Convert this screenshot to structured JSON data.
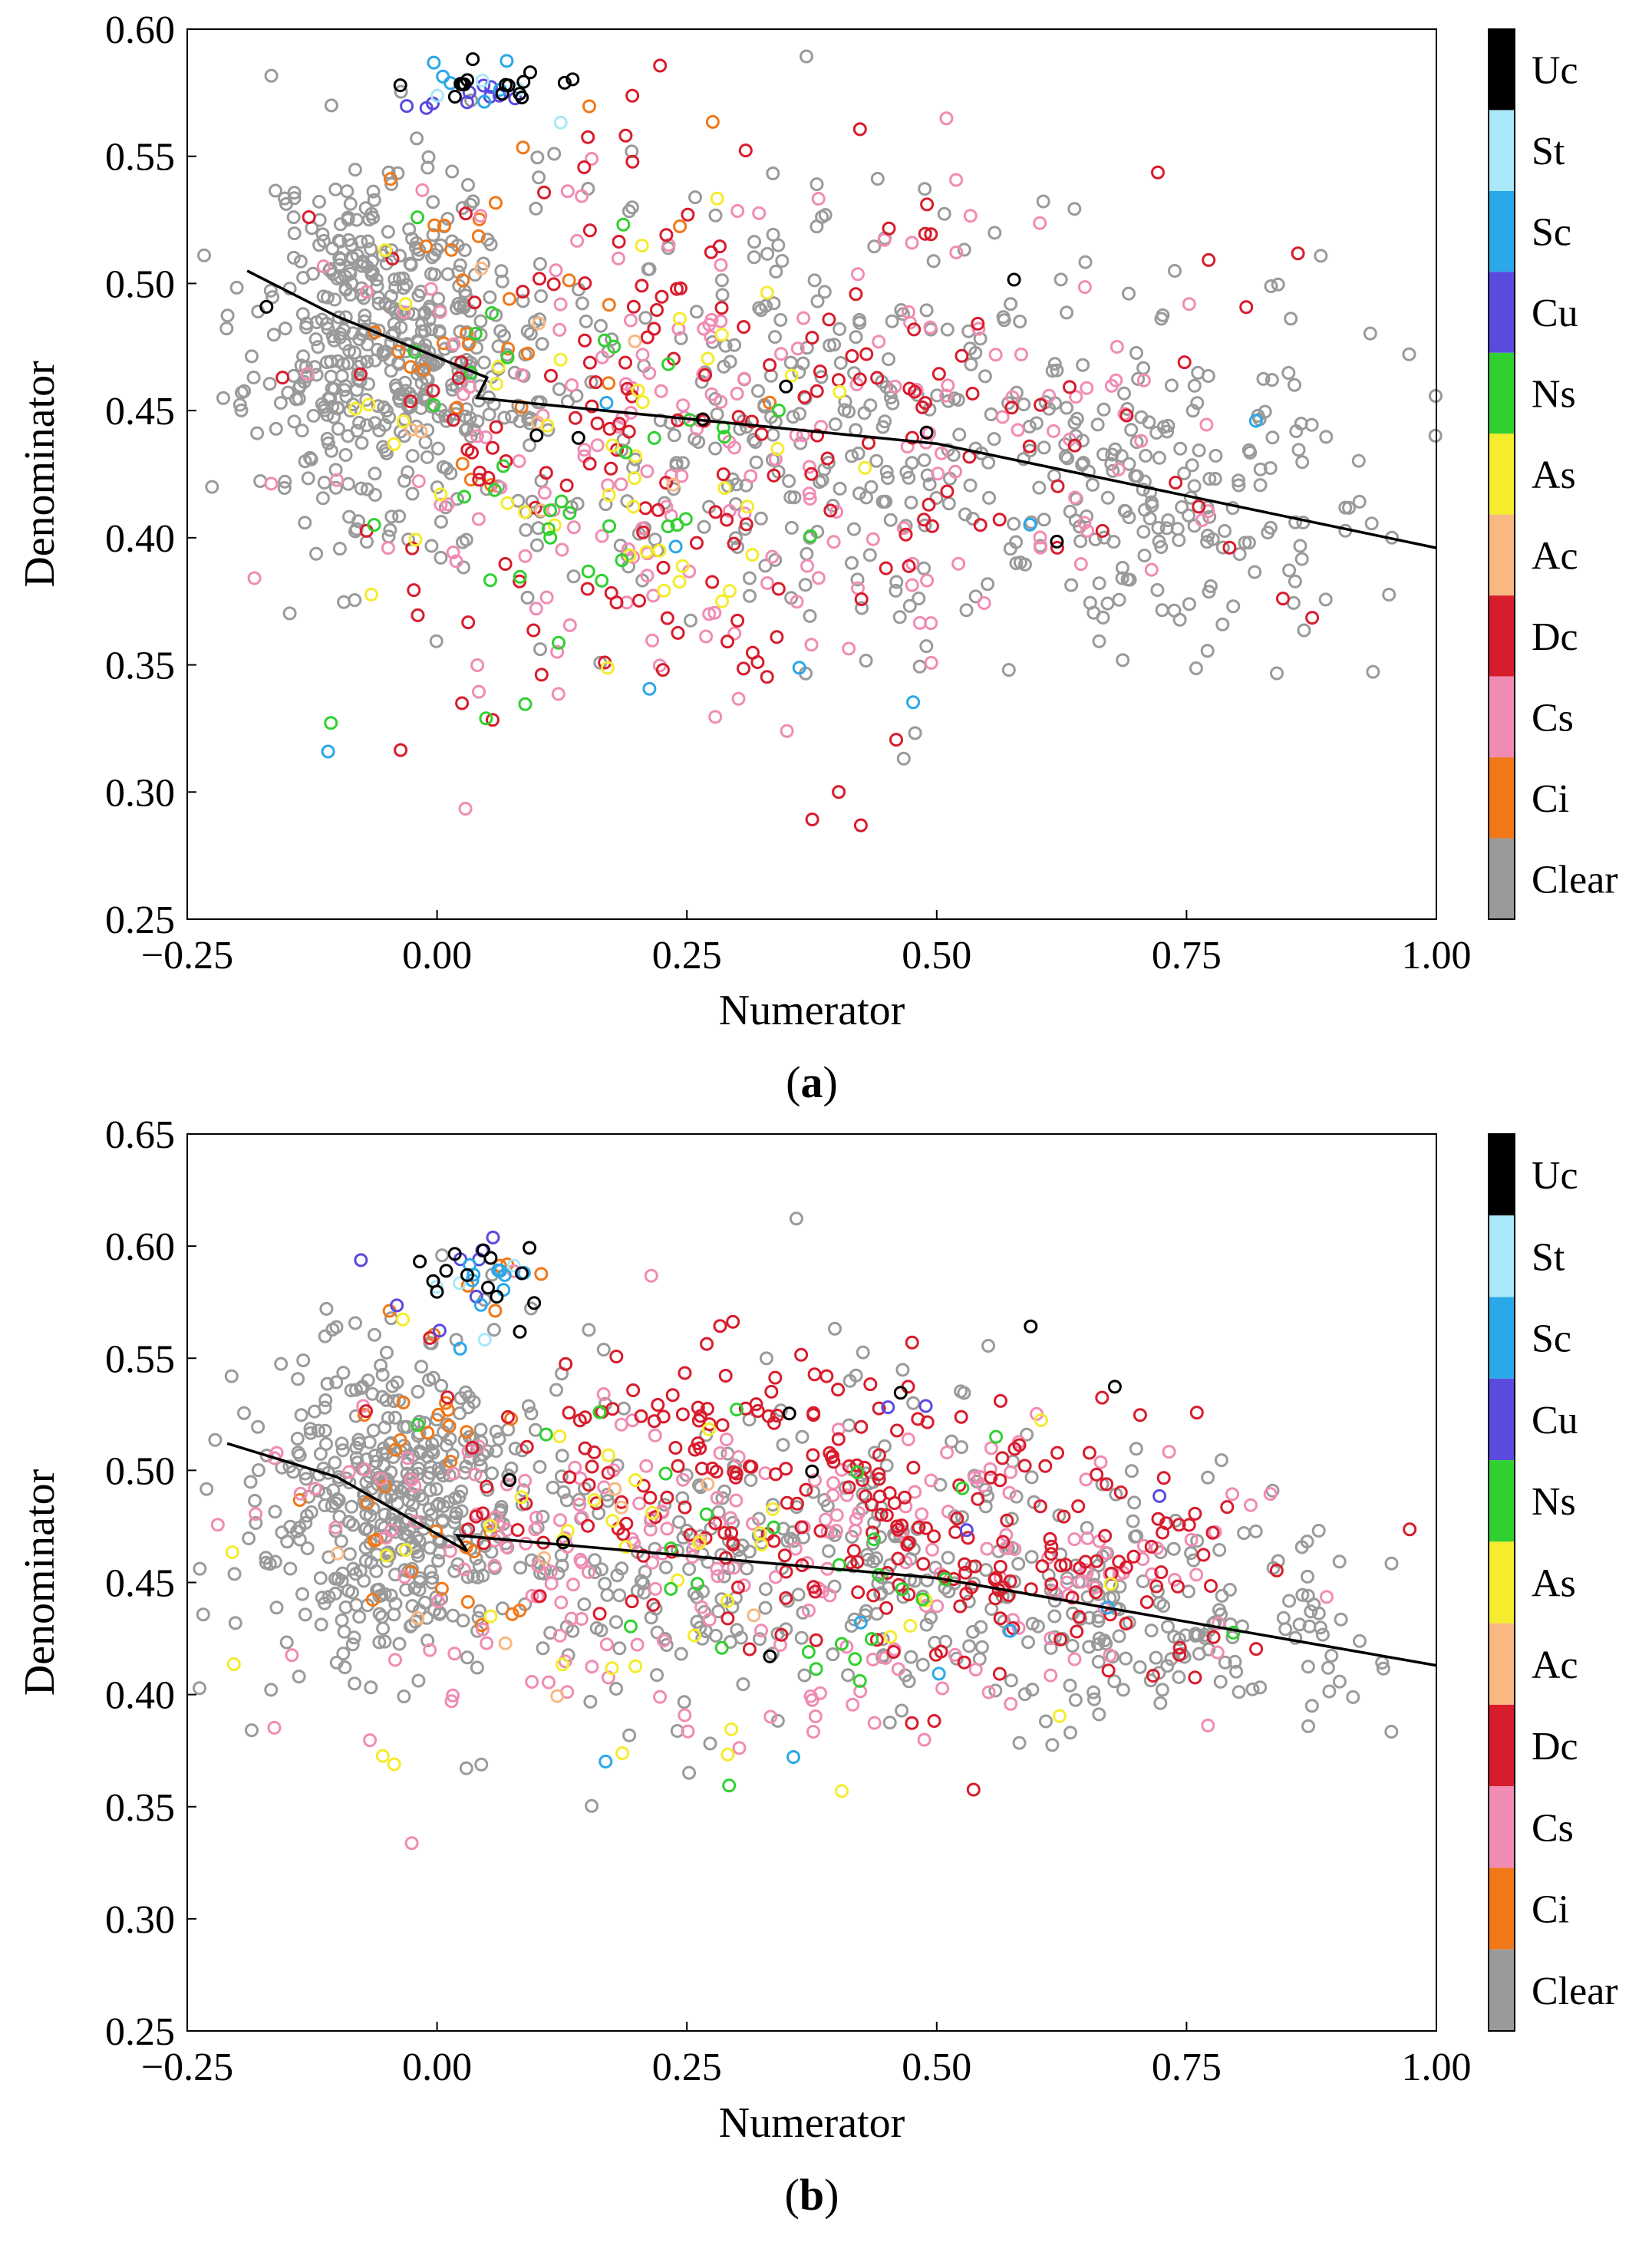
{
  "chart_data": [
    {
      "type": "scatter",
      "panel_label": "a",
      "xlabel": "Numerator",
      "ylabel": "Denominator",
      "xlim": [
        -0.25,
        1.0
      ],
      "ylim": [
        0.25,
        0.6
      ],
      "xticks": [
        -0.25,
        0.0,
        0.25,
        0.5,
        0.75,
        1.0
      ],
      "xtick_labels": [
        "−0.25",
        "0.00",
        "0.25",
        "0.50",
        "0.75",
        "1.00"
      ],
      "yticks": [
        0.25,
        0.3,
        0.35,
        0.4,
        0.45,
        0.5,
        0.55,
        0.6
      ],
      "ytick_labels": [
        "0.25",
        "0.30",
        "0.35",
        "0.40",
        "0.45",
        "0.50",
        "0.55",
        "0.60"
      ],
      "grid": false,
      "legend_placement": "right colorbar",
      "fit_line": [
        [
          -0.19,
          0.505
        ],
        [
          -0.1,
          0.487
        ],
        [
          0.05,
          0.463
        ],
        [
          0.04,
          0.455
        ],
        [
          0.5,
          0.437
        ],
        [
          1.0,
          0.396
        ]
      ],
      "series": [
        {
          "name": "Clear",
          "color": "#9a9a9a",
          "seed": 11,
          "clusters": [
            {
              "n": 420,
              "cx": -0.05,
              "cy": 0.48,
              "sx": 0.065,
              "sy": 0.035
            },
            {
              "n": 380,
              "cx": 0.32,
              "cy": 0.45,
              "sx": 0.22,
              "sy": 0.045
            },
            {
              "n": 160,
              "cx": 0.75,
              "cy": 0.415,
              "sx": 0.12,
              "sy": 0.028
            }
          ]
        },
        {
          "name": "Ci",
          "color": "#f07818",
          "seed": 21,
          "clusters": [
            {
              "n": 24,
              "cx": 0.02,
              "cy": 0.48,
              "sx": 0.05,
              "sy": 0.035
            },
            {
              "n": 8,
              "cx": 0.25,
              "cy": 0.5,
              "sx": 0.1,
              "sy": 0.04
            }
          ]
        },
        {
          "name": "Cs",
          "color": "#f08cb4",
          "seed": 31,
          "clusters": [
            {
              "n": 150,
              "cx": 0.22,
              "cy": 0.43,
              "sx": 0.18,
              "sy": 0.055
            },
            {
              "n": 45,
              "cx": 0.55,
              "cy": 0.44,
              "sx": 0.15,
              "sy": 0.04
            }
          ]
        },
        {
          "name": "Dc",
          "color": "#d81c2c",
          "seed": 41,
          "clusters": [
            {
              "n": 130,
              "cx": 0.22,
              "cy": 0.44,
              "sx": 0.16,
              "sy": 0.06
            },
            {
              "n": 50,
              "cx": 0.52,
              "cy": 0.44,
              "sx": 0.18,
              "sy": 0.045
            }
          ]
        },
        {
          "name": "Ac",
          "color": "#f8b882",
          "seed": 51,
          "clusters": [
            {
              "n": 8,
              "cx": 0.1,
              "cy": 0.45,
              "sx": 0.1,
              "sy": 0.04
            }
          ]
        },
        {
          "name": "As",
          "color": "#f4ec2c",
          "seed": 61,
          "clusters": [
            {
              "n": 45,
              "cx": 0.15,
              "cy": 0.44,
              "sx": 0.15,
              "sy": 0.05
            }
          ]
        },
        {
          "name": "Ns",
          "color": "#30d030",
          "seed": 71,
          "clusters": [
            {
              "n": 40,
              "cx": 0.15,
              "cy": 0.42,
              "sx": 0.12,
              "sy": 0.045
            }
          ]
        },
        {
          "name": "Cu",
          "color": "#5a4ae0",
          "seed": 81,
          "clusters": [
            {
              "n": 10,
              "cx": 0.03,
              "cy": 0.574,
              "sx": 0.03,
              "sy": 0.004
            }
          ]
        },
        {
          "name": "Sc",
          "color": "#2aa8e8",
          "seed": 91,
          "clusters": [
            {
              "n": 6,
              "cx": 0.06,
              "cy": 0.575,
              "sx": 0.04,
              "sy": 0.006
            },
            {
              "n": 8,
              "cx": 0.38,
              "cy": 0.38,
              "sx": 0.2,
              "sy": 0.04
            }
          ]
        },
        {
          "name": "St",
          "color": "#a8e8f8",
          "seed": 101,
          "clusters": [
            {
              "n": 4,
              "cx": 0.06,
              "cy": 0.575,
              "sx": 0.04,
              "sy": 0.006
            }
          ]
        },
        {
          "name": "Uc",
          "color": "#000000",
          "seed": 111,
          "clusters": [
            {
              "n": 16,
              "cx": 0.06,
              "cy": 0.578,
              "sx": 0.04,
              "sy": 0.005
            },
            {
              "n": 8,
              "cx": 0.3,
              "cy": 0.44,
              "sx": 0.25,
              "sy": 0.06
            }
          ]
        }
      ],
      "legend": {
        "entries": [
          "Uc",
          "St",
          "Sc",
          "Cu",
          "Ns",
          "As",
          "Ac",
          "Dc",
          "Cs",
          "Ci",
          "Clear"
        ],
        "colors": [
          "#000000",
          "#a8e8f8",
          "#2aa8e8",
          "#5a4ae0",
          "#30d030",
          "#f4ec2c",
          "#f8b882",
          "#d81c2c",
          "#f08cb4",
          "#f07818",
          "#9a9a9a"
        ]
      }
    },
    {
      "type": "scatter",
      "panel_label": "b",
      "xlabel": "Numerator",
      "ylabel": "Denominator",
      "xlim": [
        -0.25,
        1.0
      ],
      "ylim": [
        0.25,
        0.65
      ],
      "xticks": [
        -0.25,
        0.0,
        0.25,
        0.5,
        0.75,
        1.0
      ],
      "xtick_labels": [
        "−0.25",
        "0.00",
        "0.25",
        "0.50",
        "0.75",
        "1.00"
      ],
      "yticks": [
        0.25,
        0.3,
        0.35,
        0.4,
        0.45,
        0.5,
        0.55,
        0.6,
        0.65
      ],
      "ytick_labels": [
        "0.25",
        "0.30",
        "0.35",
        "0.40",
        "0.45",
        "0.50",
        "0.55",
        "0.60",
        "0.65"
      ],
      "grid": false,
      "legend_placement": "right colorbar",
      "fit_line": [
        [
          -0.21,
          0.512
        ],
        [
          -0.1,
          0.497
        ],
        [
          0.03,
          0.464
        ],
        [
          0.02,
          0.471
        ],
        [
          0.5,
          0.452
        ],
        [
          1.0,
          0.413
        ]
      ],
      "series": [
        {
          "name": "Clear",
          "color": "#9a9a9a",
          "seed": 211,
          "clusters": [
            {
              "n": 400,
              "cx": -0.04,
              "cy": 0.49,
              "sx": 0.07,
              "sy": 0.035
            },
            {
              "n": 320,
              "cx": 0.32,
              "cy": 0.46,
              "sx": 0.22,
              "sy": 0.04
            },
            {
              "n": 160,
              "cx": 0.72,
              "cy": 0.43,
              "sx": 0.13,
              "sy": 0.026
            }
          ]
        },
        {
          "name": "Ci",
          "color": "#f07818",
          "seed": 221,
          "clusters": [
            {
              "n": 30,
              "cx": 0.0,
              "cy": 0.49,
              "sx": 0.05,
              "sy": 0.035
            },
            {
              "n": 5,
              "cx": 0.05,
              "cy": 0.585,
              "sx": 0.04,
              "sy": 0.01
            }
          ]
        },
        {
          "name": "Cs",
          "color": "#f08cb4",
          "seed": 231,
          "clusters": [
            {
              "n": 170,
              "cx": 0.22,
              "cy": 0.46,
              "sx": 0.2,
              "sy": 0.045
            },
            {
              "n": 60,
              "cx": 0.6,
              "cy": 0.46,
              "sx": 0.15,
              "sy": 0.035
            }
          ]
        },
        {
          "name": "Dc",
          "color": "#d81c2c",
          "seed": 241,
          "clusters": [
            {
              "n": 150,
              "cx": 0.3,
              "cy": 0.5,
              "sx": 0.14,
              "sy": 0.03
            },
            {
              "n": 120,
              "cx": 0.62,
              "cy": 0.46,
              "sx": 0.14,
              "sy": 0.03
            }
          ]
        },
        {
          "name": "Ac",
          "color": "#f8b882",
          "seed": 251,
          "clusters": [
            {
              "n": 10,
              "cx": 0.1,
              "cy": 0.46,
              "sx": 0.12,
              "sy": 0.04
            }
          ]
        },
        {
          "name": "As",
          "color": "#f4ec2c",
          "seed": 261,
          "clusters": [
            {
              "n": 40,
              "cx": 0.2,
              "cy": 0.45,
              "sx": 0.18,
              "sy": 0.045
            }
          ]
        },
        {
          "name": "Ns",
          "color": "#30d030",
          "seed": 271,
          "clusters": [
            {
              "n": 30,
              "cx": 0.3,
              "cy": 0.46,
              "sx": 0.2,
              "sy": 0.04
            }
          ]
        },
        {
          "name": "Cu",
          "color": "#5a4ae0",
          "seed": 281,
          "clusters": [
            {
              "n": 8,
              "cx": 0.05,
              "cy": 0.585,
              "sx": 0.04,
              "sy": 0.012
            },
            {
              "n": 4,
              "cx": 0.4,
              "cy": 0.48,
              "sx": 0.15,
              "sy": 0.06
            }
          ]
        },
        {
          "name": "Sc",
          "color": "#2aa8e8",
          "seed": 291,
          "clusters": [
            {
              "n": 10,
              "cx": 0.05,
              "cy": 0.58,
              "sx": 0.04,
              "sy": 0.012
            },
            {
              "n": 6,
              "cx": 0.4,
              "cy": 0.43,
              "sx": 0.2,
              "sy": 0.04
            }
          ]
        },
        {
          "name": "St",
          "color": "#a8e8f8",
          "seed": 301,
          "clusters": [
            {
              "n": 4,
              "cx": 0.05,
              "cy": 0.58,
              "sx": 0.04,
              "sy": 0.012
            }
          ]
        },
        {
          "name": "Uc",
          "color": "#000000",
          "seed": 311,
          "clusters": [
            {
              "n": 14,
              "cx": 0.04,
              "cy": 0.59,
              "sx": 0.04,
              "sy": 0.01
            },
            {
              "n": 8,
              "cx": 0.35,
              "cy": 0.48,
              "sx": 0.25,
              "sy": 0.05
            }
          ]
        }
      ],
      "legend": {
        "entries": [
          "Uc",
          "St",
          "Sc",
          "Cu",
          "Ns",
          "As",
          "Ac",
          "Dc",
          "Cs",
          "Ci",
          "Clear"
        ],
        "colors": [
          "#000000",
          "#a8e8f8",
          "#2aa8e8",
          "#5a4ae0",
          "#30d030",
          "#f4ec2c",
          "#f8b882",
          "#d81c2c",
          "#f08cb4",
          "#f07818",
          "#9a9a9a"
        ]
      }
    }
  ]
}
